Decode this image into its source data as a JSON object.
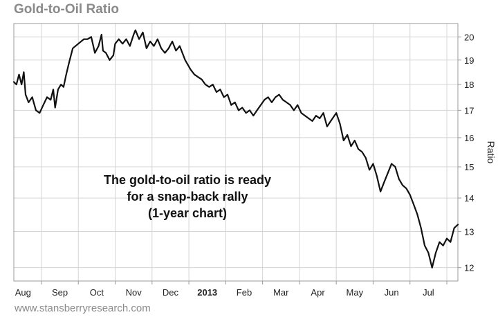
{
  "header": {
    "title": "Gold-to-Oil Ratio"
  },
  "footer": {
    "source": "www.stansberryresearch.com"
  },
  "colors": {
    "line": "#111111",
    "grid": "#d4d4d4",
    "title": "#8a8a8a"
  },
  "chart_data": {
    "type": "line",
    "title": "Gold-to-Oil Ratio",
    "xlabel": "",
    "ylabel": "Ratio",
    "y_scale": "log",
    "ylim": [
      11.65,
      20.6
    ],
    "y_ticks": [
      12,
      13,
      14,
      15,
      16,
      17,
      18,
      19,
      20
    ],
    "grid": true,
    "y_axis_side": "right",
    "x_range_months": [
      0,
      12.05
    ],
    "x_ticks": [
      {
        "label": "Aug",
        "pos": 0.25,
        "bold": false
      },
      {
        "label": "Sep",
        "pos": 1.25,
        "bold": false
      },
      {
        "label": "Oct",
        "pos": 2.25,
        "bold": false
      },
      {
        "label": "Nov",
        "pos": 3.25,
        "bold": false
      },
      {
        "label": "Dec",
        "pos": 4.25,
        "bold": false
      },
      {
        "label": "2013",
        "pos": 5.25,
        "bold": true
      },
      {
        "label": "Feb",
        "pos": 6.25,
        "bold": false
      },
      {
        "label": "Mar",
        "pos": 7.25,
        "bold": false
      },
      {
        "label": "Apr",
        "pos": 8.25,
        "bold": false
      },
      {
        "label": "May",
        "pos": 9.25,
        "bold": false
      },
      {
        "label": "Jun",
        "pos": 10.25,
        "bold": false
      },
      {
        "label": "Jul",
        "pos": 11.25,
        "bold": false
      }
    ],
    "annotation": [
      "The gold-to-oil ratio is ready",
      "for a snap-back rally",
      "(1-year chart)"
    ],
    "series": [
      {
        "name": "Gold-to-Oil Ratio",
        "x": [
          0.0,
          0.07,
          0.14,
          0.21,
          0.27,
          0.32,
          0.4,
          0.5,
          0.6,
          0.7,
          0.8,
          0.9,
          1.0,
          1.07,
          1.12,
          1.2,
          1.28,
          1.35,
          1.42,
          1.5,
          1.6,
          1.75,
          1.9,
          2.0,
          2.1,
          2.2,
          2.3,
          2.38,
          2.42,
          2.5,
          2.6,
          2.7,
          2.75,
          2.85,
          2.95,
          3.05,
          3.15,
          3.25,
          3.3,
          3.4,
          3.5,
          3.6,
          3.7,
          3.8,
          3.9,
          4.0,
          4.1,
          4.2,
          4.3,
          4.4,
          4.5,
          4.65,
          4.8,
          4.9,
          5.0,
          5.1,
          5.2,
          5.3,
          5.4,
          5.5,
          5.6,
          5.7,
          5.8,
          5.9,
          6.0,
          6.1,
          6.2,
          6.3,
          6.4,
          6.5,
          6.6,
          6.7,
          6.8,
          6.9,
          7.0,
          7.1,
          7.2,
          7.3,
          7.4,
          7.5,
          7.6,
          7.7,
          7.8,
          7.9,
          8.0,
          8.1,
          8.2,
          8.3,
          8.4,
          8.5,
          8.6,
          8.7,
          8.75,
          8.85,
          8.95,
          9.05,
          9.15,
          9.25,
          9.35,
          9.45,
          9.55,
          9.65,
          9.75,
          9.85,
          9.95,
          10.05,
          10.15,
          10.25,
          10.35,
          10.45,
          10.55,
          10.65,
          10.75,
          10.85,
          10.95,
          11.05,
          11.15,
          11.25,
          11.35,
          11.45,
          11.55,
          11.65,
          11.75,
          11.85,
          11.95,
          12.05
        ],
        "values": [
          18.1,
          18.0,
          18.4,
          18.0,
          18.5,
          17.6,
          17.3,
          17.5,
          17.0,
          16.9,
          17.2,
          17.5,
          17.4,
          17.8,
          17.1,
          17.8,
          18.0,
          17.9,
          18.4,
          18.9,
          19.5,
          19.7,
          19.9,
          19.9,
          20.0,
          19.3,
          19.6,
          20.1,
          19.4,
          19.3,
          19.0,
          19.2,
          19.7,
          19.9,
          19.7,
          19.9,
          19.6,
          20.1,
          20.3,
          19.9,
          20.2,
          19.5,
          19.8,
          19.6,
          19.9,
          19.5,
          19.3,
          19.5,
          19.8,
          19.4,
          19.6,
          19.0,
          18.6,
          18.4,
          18.3,
          18.2,
          18.0,
          17.9,
          18.0,
          17.7,
          17.8,
          17.5,
          17.6,
          17.2,
          17.3,
          17.0,
          17.1,
          16.9,
          17.0,
          16.8,
          17.0,
          17.2,
          17.4,
          17.5,
          17.3,
          17.5,
          17.6,
          17.4,
          17.3,
          17.2,
          17.0,
          17.2,
          16.9,
          16.8,
          16.7,
          16.6,
          16.8,
          16.7,
          16.9,
          16.4,
          16.6,
          16.8,
          16.9,
          16.5,
          15.9,
          16.1,
          15.7,
          15.9,
          15.6,
          15.5,
          15.3,
          14.9,
          15.1,
          14.7,
          14.2,
          14.5,
          14.8,
          15.1,
          15.0,
          14.6,
          14.4,
          14.3,
          14.1,
          13.8,
          13.5,
          13.1,
          12.6,
          12.4,
          12.0,
          12.4,
          12.7,
          12.6,
          12.8,
          12.7,
          13.1,
          13.2
        ]
      }
    ]
  }
}
